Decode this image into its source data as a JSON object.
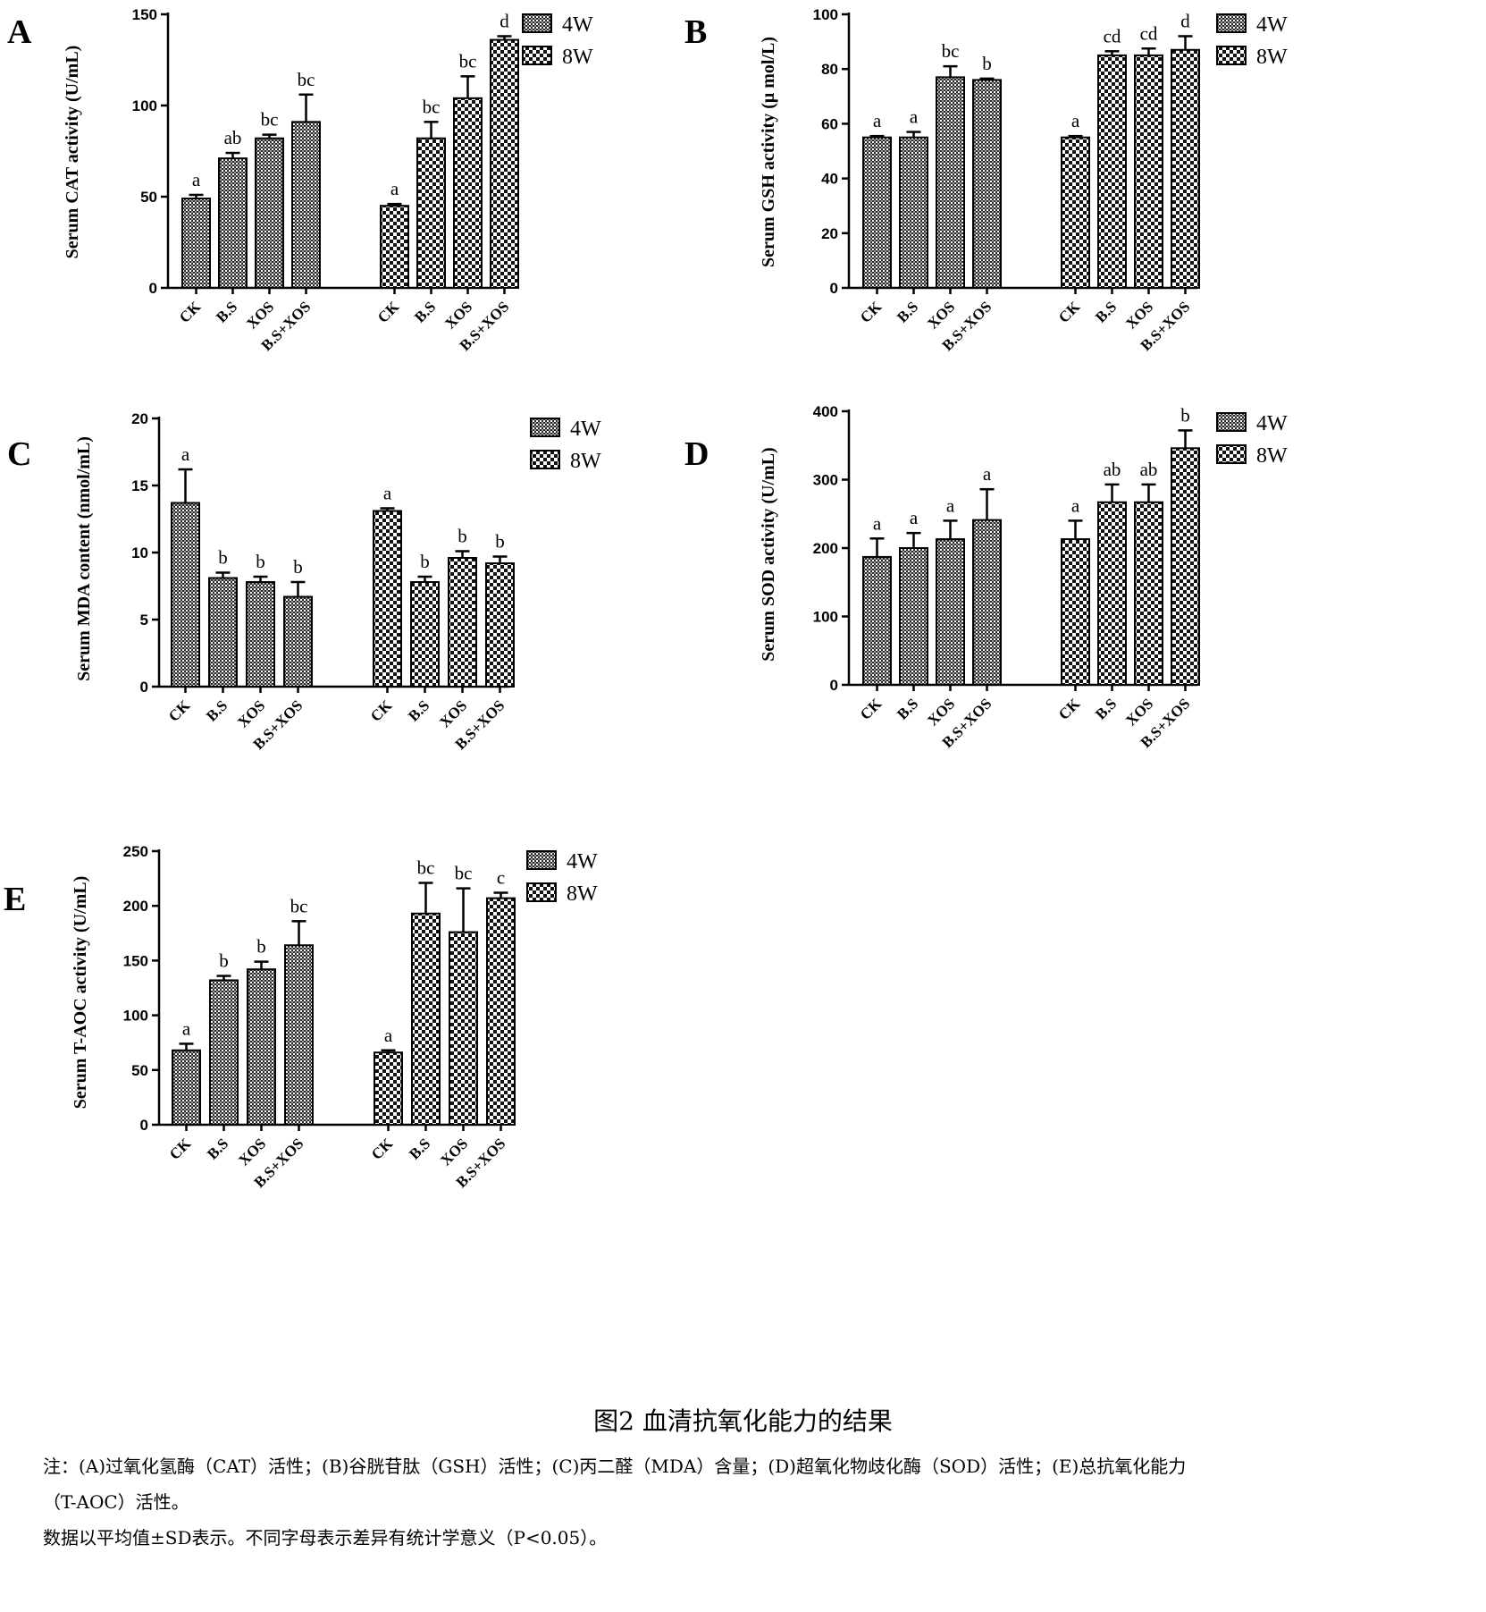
{
  "chart_data": [
    {
      "panel": "A",
      "type": "bar",
      "ylabel": "Serum CAT activity (U/mL)",
      "ylim": [
        0,
        150
      ],
      "yticks": [
        0,
        50,
        100,
        150
      ],
      "categories": [
        "CK",
        "B.S",
        "XOS",
        "B.S+XOS"
      ],
      "series": [
        {
          "name": "4W",
          "values": [
            49,
            71,
            82,
            91
          ],
          "errors": [
            2,
            3,
            2,
            15
          ],
          "labels": [
            "a",
            "ab",
            "bc",
            "bc"
          ]
        },
        {
          "name": "8W",
          "values": [
            45,
            82,
            104,
            136
          ],
          "errors": [
            1,
            9,
            12,
            2
          ],
          "labels": [
            "a",
            "bc",
            "bc",
            "d"
          ]
        }
      ],
      "legend": "top-right"
    },
    {
      "panel": "B",
      "type": "bar",
      "ylabel": "Serum GSH activity (μ mol/L)",
      "ylim": [
        0,
        100
      ],
      "yticks": [
        0,
        20,
        40,
        60,
        80,
        100
      ],
      "categories": [
        "CK",
        "B.S",
        "XOS",
        "B.S+XOS"
      ],
      "series": [
        {
          "name": "4W",
          "values": [
            55,
            55,
            77,
            76
          ],
          "errors": [
            0.5,
            2,
            4,
            0.5
          ],
          "labels": [
            "a",
            "a",
            "bc",
            "b"
          ]
        },
        {
          "name": "8W",
          "values": [
            55,
            85,
            85,
            87
          ],
          "errors": [
            0.5,
            1.5,
            2.5,
            5
          ],
          "labels": [
            "a",
            "cd",
            "cd",
            "d"
          ]
        }
      ],
      "legend": "top-right"
    },
    {
      "panel": "C",
      "type": "bar",
      "ylabel": "Serum MDA content (nmol/mL)",
      "ylim": [
        0,
        20
      ],
      "yticks": [
        0,
        5,
        10,
        15,
        20
      ],
      "categories": [
        "CK",
        "B.S",
        "XOS",
        "B.S+XOS"
      ],
      "series": [
        {
          "name": "4W",
          "values": [
            13.7,
            8.1,
            7.8,
            6.7
          ],
          "errors": [
            2.5,
            0.4,
            0.4,
            1.1
          ],
          "labels": [
            "a",
            "b",
            "b",
            "b"
          ]
        },
        {
          "name": "8W",
          "values": [
            13.1,
            7.8,
            9.6,
            9.2
          ],
          "errors": [
            0.2,
            0.4,
            0.5,
            0.5
          ],
          "labels": [
            "a",
            "b",
            "b",
            "b"
          ]
        }
      ],
      "legend": "top-right"
    },
    {
      "panel": "D",
      "type": "bar",
      "ylabel": "Serum SOD activity (U/mL)",
      "ylim": [
        0,
        400
      ],
      "yticks": [
        0,
        100,
        200,
        300,
        400
      ],
      "categories": [
        "CK",
        "B.S",
        "XOS",
        "B.S+XOS"
      ],
      "series": [
        {
          "name": "4W",
          "values": [
            187,
            200,
            213,
            241
          ],
          "errors": [
            27,
            22,
            27,
            45
          ],
          "labels": [
            "a",
            "a",
            "a",
            "a"
          ]
        },
        {
          "name": "8W",
          "values": [
            213,
            267,
            267,
            346
          ],
          "errors": [
            27,
            26,
            26,
            26
          ],
          "labels": [
            "a",
            "ab",
            "ab",
            "b"
          ]
        }
      ],
      "legend": "top-right"
    },
    {
      "panel": "E",
      "type": "bar",
      "ylabel": "Serum T-AOC activity (U/mL)",
      "ylim": [
        0,
        250
      ],
      "yticks": [
        0,
        50,
        100,
        150,
        200,
        250
      ],
      "categories": [
        "CK",
        "B.S",
        "XOS",
        "B.S+XOS"
      ],
      "series": [
        {
          "name": "4W",
          "values": [
            68,
            132,
            142,
            164
          ],
          "errors": [
            6,
            4,
            7,
            22
          ],
          "labels": [
            "a",
            "b",
            "b",
            "bc"
          ]
        },
        {
          "name": "8W",
          "values": [
            66,
            193,
            176,
            207
          ],
          "errors": [
            2,
            28,
            40,
            5
          ],
          "labels": [
            "a",
            "bc",
            "bc",
            "c"
          ]
        }
      ],
      "legend": "top-right"
    }
  ],
  "caption": "图2 血清抗氧化能力的结果",
  "note_line1": "注：(A)过氧化氢酶（CAT）活性；(B)谷胱苷肽（GSH）活性；(C)丙二醛（MDA）含量；(D)超氧化物歧化酶（SOD）活性；(E)总抗氧化能力",
  "note_line2": "（T-AOC）活性。",
  "note_line3": "数据以平均值±SD表示。不同字母表示差异有统计学意义（P<0.05）。"
}
